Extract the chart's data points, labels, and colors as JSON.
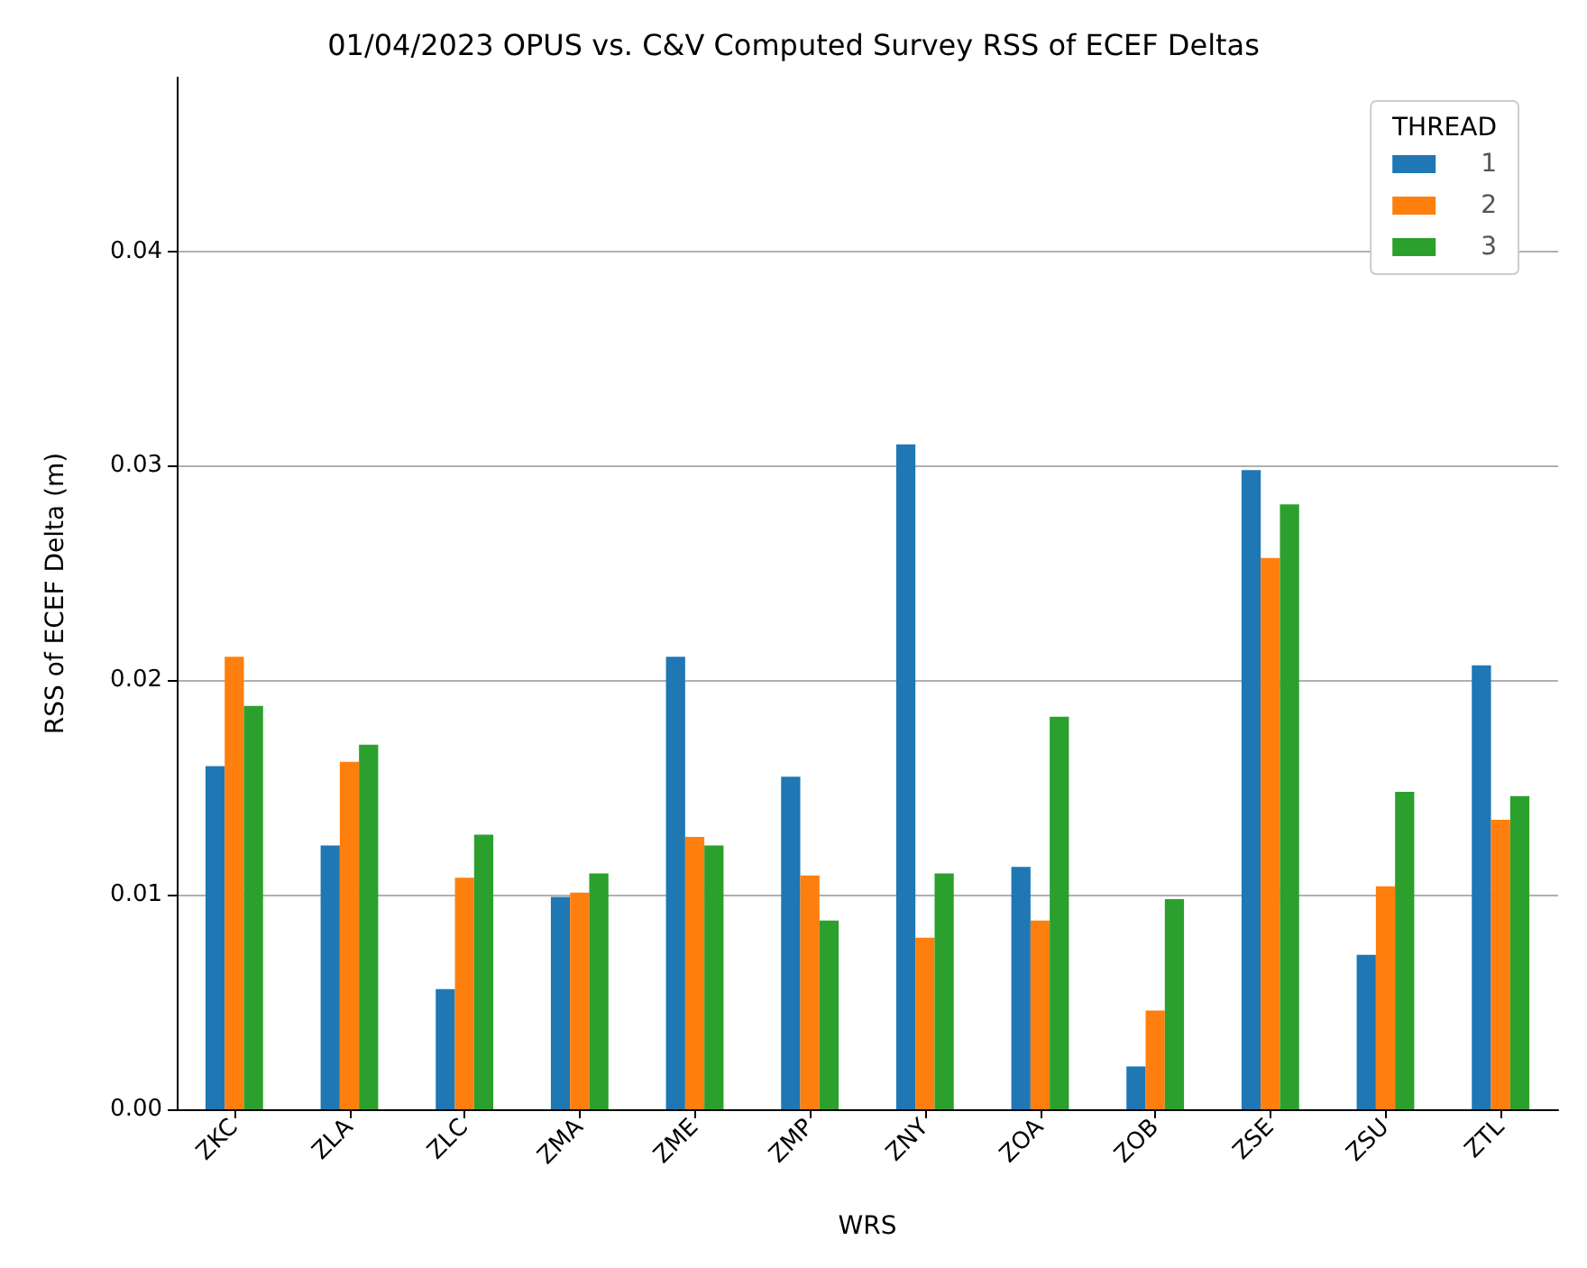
{
  "chart_data": {
    "type": "bar",
    "title": "01/04/2023 OPUS vs. C&V Computed Survey RSS of ECEF Deltas",
    "xlabel": "WRS",
    "ylabel": "RSS of ECEF Delta (m)",
    "legend_title": "THREAD",
    "legend": "top right",
    "grid": "y",
    "categories": [
      "ZKC",
      "ZLA",
      "ZLC",
      "ZMA",
      "ZME",
      "ZMP",
      "ZNY",
      "ZOA",
      "ZOB",
      "ZSE",
      "ZSU",
      "ZTL"
    ],
    "ylim": [
      0,
      0.0481
    ],
    "yticks": [
      {
        "value": 0,
        "label": "0.00"
      },
      {
        "value": 0.01,
        "label": "0.01"
      },
      {
        "value": 0.02,
        "label": "0.02"
      },
      {
        "value": 0.03,
        "label": "0.03"
      },
      {
        "value": 0.04,
        "label": "0.04"
      }
    ],
    "series": [
      {
        "name": "1",
        "color": "#1f77b4",
        "values": [
          0.016,
          0.0123,
          0.0056,
          0.0099,
          0.0211,
          0.0155,
          0.031,
          0.0113,
          0.002,
          0.0298,
          0.0072,
          0.0207
        ]
      },
      {
        "name": "2",
        "color": "#ff7f0e",
        "values": [
          0.0211,
          0.0162,
          0.0108,
          0.0101,
          0.0127,
          0.0109,
          0.008,
          0.0088,
          0.0046,
          0.0257,
          0.0104,
          0.0135
        ]
      },
      {
        "name": "3",
        "color": "#2ca02c",
        "values": [
          0.0188,
          0.017,
          0.0128,
          0.011,
          0.0123,
          0.0088,
          0.011,
          0.0183,
          0.0098,
          0.0282,
          0.0148,
          0.0146
        ]
      }
    ]
  }
}
